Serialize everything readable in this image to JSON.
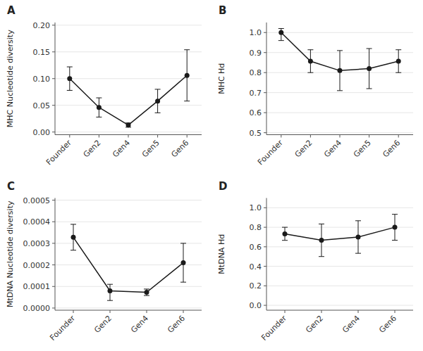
{
  "chart_data": [
    {
      "type": "line",
      "title": "A",
      "ylabel": "MHC Nucleotide diversity",
      "categories": [
        "Founder",
        "Gen2",
        "Gen4",
        "Gen5",
        "Gen6"
      ],
      "values": [
        0.1,
        0.046,
        0.013,
        0.058,
        0.106
      ],
      "error_upper": [
        0.022,
        0.018,
        0.004,
        0.022,
        0.048
      ],
      "error_lower": [
        0.022,
        0.018,
        0.004,
        0.022,
        0.048
      ],
      "ylim": [
        -0.005,
        0.205
      ],
      "yticks": [
        {
          "value": 0,
          "label": "0.00"
        },
        0.05,
        {
          "value": 0.1,
          "label": "0.10"
        },
        0.15,
        {
          "value": 0.2,
          "label": "0.20"
        }
      ],
      "color": "#1a1a1a",
      "marker": "circle",
      "line_style": "solid"
    },
    {
      "type": "line",
      "title": "B",
      "ylabel": "MHC Hd",
      "categories": [
        "Founder",
        "Gen2",
        "Gen4",
        "Gen5",
        "Gen6"
      ],
      "values": [
        1.0,
        0.857,
        0.81,
        0.82,
        0.857
      ],
      "error_upper": [
        0.02,
        0.057,
        0.1,
        0.1,
        0.057
      ],
      "error_lower": [
        0.04,
        0.057,
        0.1,
        0.1,
        0.057
      ],
      "ylim": [
        0.49,
        1.05
      ],
      "yticks": [
        0.5,
        0.6,
        0.7,
        0.8,
        0.9,
        {
          "value": 1,
          "label": "1.0"
        }
      ],
      "color": "#1a1a1a",
      "marker": "circle",
      "line_style": "solid"
    },
    {
      "type": "line",
      "title": "C",
      "ylabel": "MtDNA Nucleotide diversity",
      "categories": [
        "Founder",
        "Gen2",
        "Gen4",
        "Gen6"
      ],
      "values": [
        0.000328,
        8e-05,
        7.3e-05,
        0.00021
      ],
      "error_upper": [
        6e-05,
        3e-05,
        1.5e-05,
        9e-05
      ],
      "error_lower": [
        6e-05,
        4.5e-05,
        1.5e-05,
        9e-05
      ],
      "ylim": [
        -1e-05,
        0.00051
      ],
      "yticks": [
        {
          "value": 0,
          "label": "0.0000"
        },
        0.0001,
        0.0002,
        0.0003,
        0.0004,
        0.0005
      ],
      "color": "#1a1a1a",
      "marker": "circle",
      "line_style": "solid"
    },
    {
      "type": "line",
      "title": "D",
      "ylabel": "MtDNA Hd",
      "categories": [
        "Founder",
        "Gen2",
        "Gen4",
        "Gen6"
      ],
      "values": [
        0.733,
        0.667,
        0.7,
        0.8
      ],
      "error_upper": [
        0.067,
        0.167,
        0.167,
        0.133
      ],
      "error_lower": [
        0.067,
        0.167,
        0.167,
        0.133
      ],
      "ylim": [
        -0.05,
        1.1
      ],
      "yticks": [
        {
          "value": 0,
          "label": "0.0"
        },
        0.2,
        0.4,
        0.6,
        0.8,
        {
          "value": 1,
          "label": "1.0"
        }
      ],
      "color": "#1a1a1a",
      "marker": "circle",
      "line_style": "solid"
    }
  ]
}
